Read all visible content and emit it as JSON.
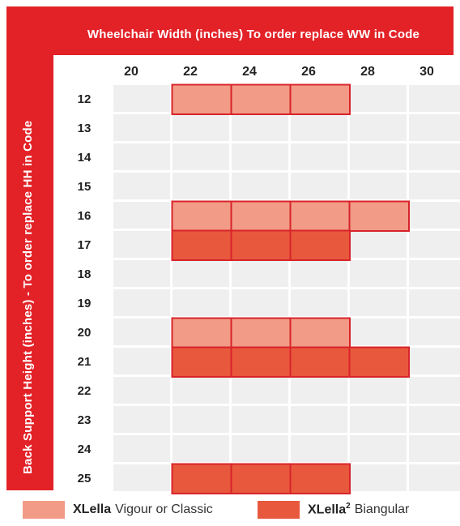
{
  "header": {
    "top_title": "Wheelchair Width (inches)  To order replace WW in Code",
    "side_title": "Back Support  Height (inches) - To order replace HH in Code"
  },
  "colors": {
    "band": "#e32228",
    "light": "#f29b87",
    "dark": "#e8583d",
    "border": "#d8242a",
    "grid_bg": "#efefef",
    "grid_line": "#ffffff"
  },
  "legend": {
    "items": [
      {
        "bold": "XLella",
        "sup": "",
        "text": "Vigour or Classic",
        "color": "#f29b87"
      },
      {
        "bold": "XLella",
        "sup": "2",
        "text": "Biangular",
        "color": "#e8583d"
      }
    ]
  },
  "chart_data": {
    "type": "table",
    "widths": [
      "20",
      "22",
      "24",
      "26",
      "28",
      "30"
    ],
    "heights": [
      "12",
      "13",
      "14",
      "15",
      "16",
      "17",
      "18",
      "19",
      "20",
      "21",
      "22",
      "23",
      "24",
      "25"
    ],
    "availability": [
      {
        "height": "12",
        "widths": [
          "22",
          "24",
          "26"
        ],
        "model": "XLella Vigour or Classic"
      },
      {
        "height": "16",
        "widths": [
          "22",
          "24",
          "26",
          "28"
        ],
        "model": "XLella Vigour or Classic"
      },
      {
        "height": "17",
        "widths": [
          "22",
          "24",
          "26"
        ],
        "model": "XLella² Biangular"
      },
      {
        "height": "20",
        "widths": [
          "22",
          "24",
          "26"
        ],
        "model": "XLella Vigour or Classic"
      },
      {
        "height": "21",
        "widths": [
          "22",
          "24",
          "26",
          "28"
        ],
        "model": "XLella² Biangular"
      },
      {
        "height": "25",
        "widths": [
          "22",
          "24",
          "26"
        ],
        "model": "XLella² Biangular"
      }
    ]
  }
}
